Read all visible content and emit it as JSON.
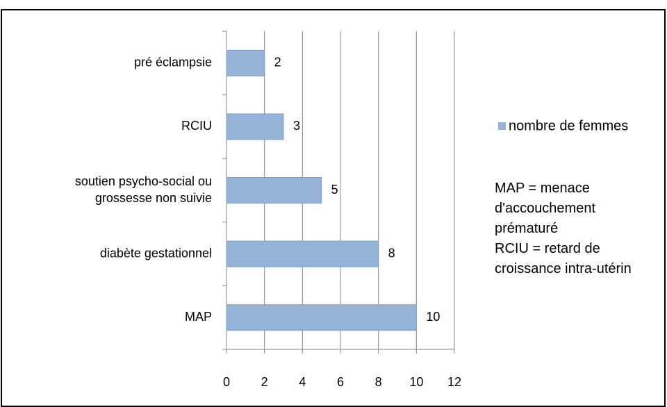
{
  "chart_data": {
    "type": "bar",
    "orientation": "horizontal",
    "categories": [
      "pré éclampsie",
      "RCIU",
      "soutien psycho-social ou\ngrossesse non suivie",
      "diabète gestationnel",
      "MAP"
    ],
    "series": [
      {
        "name": "nombre de femmes",
        "color": "#95b3d7",
        "values": [
          2,
          3,
          5,
          8,
          10
        ]
      }
    ],
    "xlim": [
      0,
      12
    ],
    "xticks": [
      0,
      2,
      4,
      6,
      8,
      10,
      12
    ],
    "grid": true,
    "legend": "right",
    "annotations": [
      "MAP = menace d'accouchement prématuré",
      "RCIU = retard de croissance intra-utérin"
    ]
  }
}
